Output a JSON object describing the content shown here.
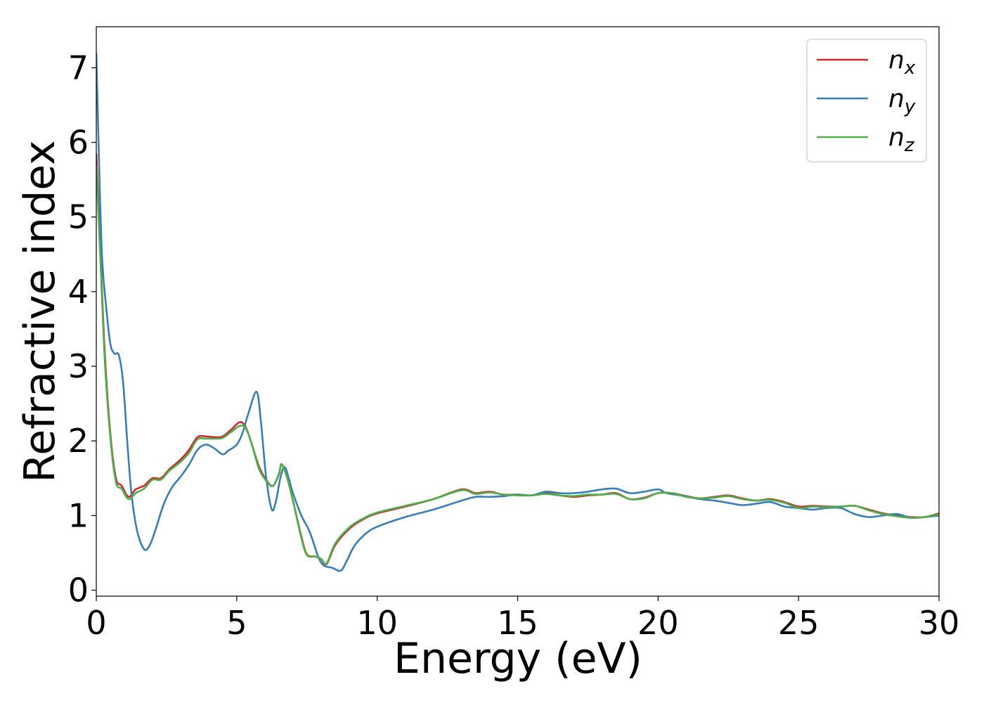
{
  "chart_data": {
    "type": "line",
    "xlabel": "Energy (eV)",
    "ylabel": "Refractive index",
    "xlim": [
      0,
      30
    ],
    "ylim": [
      -0.08,
      7.55
    ],
    "x_ticks": [
      0,
      5,
      10,
      15,
      20,
      25,
      30
    ],
    "y_ticks": [
      0,
      1,
      2,
      3,
      4,
      5,
      6,
      7
    ],
    "grid": false,
    "legend_position": "top-right",
    "series": [
      {
        "name": "n_x",
        "legend_base": "n",
        "legend_sub": "x",
        "color": "#d62728",
        "points": [
          [
            0,
            5.85
          ],
          [
            0.15,
            4.5
          ],
          [
            0.3,
            3.2
          ],
          [
            0.5,
            2.1
          ],
          [
            0.7,
            1.5
          ],
          [
            0.9,
            1.4
          ],
          [
            1.15,
            1.25
          ],
          [
            1.4,
            1.35
          ],
          [
            1.7,
            1.4
          ],
          [
            2.0,
            1.5
          ],
          [
            2.3,
            1.5
          ],
          [
            2.6,
            1.62
          ],
          [
            3.0,
            1.75
          ],
          [
            3.3,
            1.88
          ],
          [
            3.6,
            2.05
          ],
          [
            3.9,
            2.06
          ],
          [
            4.2,
            2.05
          ],
          [
            4.5,
            2.06
          ],
          [
            4.8,
            2.15
          ],
          [
            5.1,
            2.25
          ],
          [
            5.3,
            2.2
          ],
          [
            5.5,
            2.0
          ],
          [
            5.8,
            1.65
          ],
          [
            6.1,
            1.45
          ],
          [
            6.3,
            1.4
          ],
          [
            6.5,
            1.55
          ],
          [
            6.6,
            1.68
          ],
          [
            6.8,
            1.5
          ],
          [
            7.0,
            1.2
          ],
          [
            7.3,
            0.72
          ],
          [
            7.5,
            0.48
          ],
          [
            7.8,
            0.45
          ],
          [
            8.0,
            0.42
          ],
          [
            8.2,
            0.35
          ],
          [
            8.5,
            0.6
          ],
          [
            9.0,
            0.82
          ],
          [
            9.5,
            0.95
          ],
          [
            10,
            1.03
          ],
          [
            11,
            1.12
          ],
          [
            12,
            1.22
          ],
          [
            13,
            1.35
          ],
          [
            13.5,
            1.3
          ],
          [
            14,
            1.32
          ],
          [
            14.5,
            1.28
          ],
          [
            15,
            1.28
          ],
          [
            15.5,
            1.27
          ],
          [
            16,
            1.3
          ],
          [
            16.5,
            1.27
          ],
          [
            17,
            1.25
          ],
          [
            17.5,
            1.27
          ],
          [
            18,
            1.28
          ],
          [
            18.5,
            1.3
          ],
          [
            19,
            1.22
          ],
          [
            19.5,
            1.24
          ],
          [
            20,
            1.3
          ],
          [
            20.5,
            1.3
          ],
          [
            21,
            1.26
          ],
          [
            21.5,
            1.23
          ],
          [
            22,
            1.25
          ],
          [
            22.5,
            1.27
          ],
          [
            23,
            1.23
          ],
          [
            23.5,
            1.2
          ],
          [
            24,
            1.22
          ],
          [
            24.5,
            1.18
          ],
          [
            25,
            1.12
          ],
          [
            25.5,
            1.13
          ],
          [
            26,
            1.12
          ],
          [
            26.5,
            1.12
          ],
          [
            27,
            1.13
          ],
          [
            27.5,
            1.08
          ],
          [
            28,
            1.03
          ],
          [
            28.5,
            1.0
          ],
          [
            29,
            0.98
          ],
          [
            29.5,
            0.98
          ],
          [
            30,
            1.03
          ]
        ]
      },
      {
        "name": "n_y",
        "legend_base": "n",
        "legend_sub": "y",
        "color": "#377eb8",
        "points": [
          [
            0,
            7.2
          ],
          [
            0.08,
            6.0
          ],
          [
            0.2,
            4.5
          ],
          [
            0.35,
            3.8
          ],
          [
            0.5,
            3.3
          ],
          [
            0.65,
            3.17
          ],
          [
            0.8,
            3.15
          ],
          [
            0.95,
            2.8
          ],
          [
            1.1,
            2.0
          ],
          [
            1.25,
            1.3
          ],
          [
            1.45,
            0.8
          ],
          [
            1.7,
            0.55
          ],
          [
            1.9,
            0.6
          ],
          [
            2.1,
            0.8
          ],
          [
            2.4,
            1.15
          ],
          [
            2.7,
            1.38
          ],
          [
            3.0,
            1.52
          ],
          [
            3.3,
            1.68
          ],
          [
            3.6,
            1.88
          ],
          [
            3.9,
            1.95
          ],
          [
            4.2,
            1.9
          ],
          [
            4.5,
            1.82
          ],
          [
            4.7,
            1.87
          ],
          [
            5.0,
            1.95
          ],
          [
            5.2,
            2.1
          ],
          [
            5.4,
            2.35
          ],
          [
            5.7,
            2.66
          ],
          [
            5.85,
            2.3
          ],
          [
            6.05,
            1.5
          ],
          [
            6.25,
            1.08
          ],
          [
            6.4,
            1.2
          ],
          [
            6.55,
            1.5
          ],
          [
            6.7,
            1.65
          ],
          [
            6.85,
            1.5
          ],
          [
            7.0,
            1.3
          ],
          [
            7.3,
            1.0
          ],
          [
            7.6,
            0.78
          ],
          [
            7.9,
            0.45
          ],
          [
            8.1,
            0.33
          ],
          [
            8.4,
            0.3
          ],
          [
            8.7,
            0.26
          ],
          [
            8.9,
            0.38
          ],
          [
            9.2,
            0.6
          ],
          [
            9.6,
            0.76
          ],
          [
            10,
            0.85
          ],
          [
            11,
            0.98
          ],
          [
            12,
            1.08
          ],
          [
            13,
            1.2
          ],
          [
            13.5,
            1.25
          ],
          [
            14,
            1.25
          ],
          [
            14.5,
            1.26
          ],
          [
            15,
            1.28
          ],
          [
            15.5,
            1.27
          ],
          [
            16,
            1.32
          ],
          [
            16.5,
            1.3
          ],
          [
            17,
            1.3
          ],
          [
            17.5,
            1.32
          ],
          [
            18,
            1.35
          ],
          [
            18.5,
            1.36
          ],
          [
            19,
            1.3
          ],
          [
            19.5,
            1.32
          ],
          [
            20,
            1.35
          ],
          [
            20.3,
            1.3
          ],
          [
            20.8,
            1.27
          ],
          [
            21.5,
            1.22
          ],
          [
            22,
            1.2
          ],
          [
            22.5,
            1.17
          ],
          [
            23,
            1.14
          ],
          [
            23.5,
            1.16
          ],
          [
            24,
            1.18
          ],
          [
            24.5,
            1.12
          ],
          [
            25,
            1.1
          ],
          [
            25.5,
            1.08
          ],
          [
            26,
            1.1
          ],
          [
            26.5,
            1.1
          ],
          [
            27,
            1.02
          ],
          [
            27.5,
            0.98
          ],
          [
            28,
            1.0
          ],
          [
            28.5,
            1.02
          ],
          [
            29,
            0.97
          ],
          [
            29.5,
            0.98
          ],
          [
            30,
            1.0
          ]
        ]
      },
      {
        "name": "n_z",
        "legend_base": "n",
        "legend_sub": "z",
        "color": "#4daf4a",
        "points": [
          [
            0,
            5.7
          ],
          [
            0.15,
            4.4
          ],
          [
            0.3,
            3.1
          ],
          [
            0.5,
            2.05
          ],
          [
            0.7,
            1.45
          ],
          [
            0.9,
            1.36
          ],
          [
            1.15,
            1.22
          ],
          [
            1.4,
            1.3
          ],
          [
            1.7,
            1.36
          ],
          [
            2.0,
            1.48
          ],
          [
            2.3,
            1.48
          ],
          [
            2.6,
            1.6
          ],
          [
            3.0,
            1.72
          ],
          [
            3.3,
            1.84
          ],
          [
            3.6,
            2.02
          ],
          [
            3.9,
            2.03
          ],
          [
            4.2,
            2.03
          ],
          [
            4.5,
            2.04
          ],
          [
            4.8,
            2.12
          ],
          [
            5.1,
            2.2
          ],
          [
            5.3,
            2.18
          ],
          [
            5.5,
            2.0
          ],
          [
            5.8,
            1.62
          ],
          [
            6.1,
            1.44
          ],
          [
            6.3,
            1.4
          ],
          [
            6.5,
            1.56
          ],
          [
            6.6,
            1.69
          ],
          [
            6.8,
            1.5
          ],
          [
            7.0,
            1.2
          ],
          [
            7.3,
            0.7
          ],
          [
            7.5,
            0.47
          ],
          [
            7.8,
            0.45
          ],
          [
            8.0,
            0.42
          ],
          [
            8.2,
            0.36
          ],
          [
            8.5,
            0.62
          ],
          [
            9.0,
            0.84
          ],
          [
            9.5,
            0.96
          ],
          [
            10,
            1.04
          ],
          [
            11,
            1.13
          ],
          [
            12,
            1.22
          ],
          [
            13,
            1.34
          ],
          [
            13.5,
            1.29
          ],
          [
            14,
            1.31
          ],
          [
            14.5,
            1.28
          ],
          [
            15,
            1.27
          ],
          [
            15.5,
            1.27
          ],
          [
            16,
            1.29
          ],
          [
            16.5,
            1.27
          ],
          [
            17,
            1.26
          ],
          [
            17.5,
            1.28
          ],
          [
            18,
            1.28
          ],
          [
            18.5,
            1.29
          ],
          [
            19,
            1.22
          ],
          [
            19.5,
            1.23
          ],
          [
            20,
            1.3
          ],
          [
            20.5,
            1.3
          ],
          [
            21,
            1.25
          ],
          [
            21.5,
            1.23
          ],
          [
            22,
            1.24
          ],
          [
            22.5,
            1.26
          ],
          [
            23,
            1.22
          ],
          [
            23.5,
            1.2
          ],
          [
            24,
            1.21
          ],
          [
            24.5,
            1.17
          ],
          [
            25,
            1.1
          ],
          [
            25.5,
            1.12
          ],
          [
            26,
            1.11
          ],
          [
            26.5,
            1.12
          ],
          [
            27,
            1.13
          ],
          [
            27.5,
            1.07
          ],
          [
            28,
            1.02
          ],
          [
            28.5,
            0.99
          ],
          [
            29,
            0.97
          ],
          [
            29.5,
            0.98
          ],
          [
            30,
            1.02
          ]
        ]
      }
    ]
  }
}
